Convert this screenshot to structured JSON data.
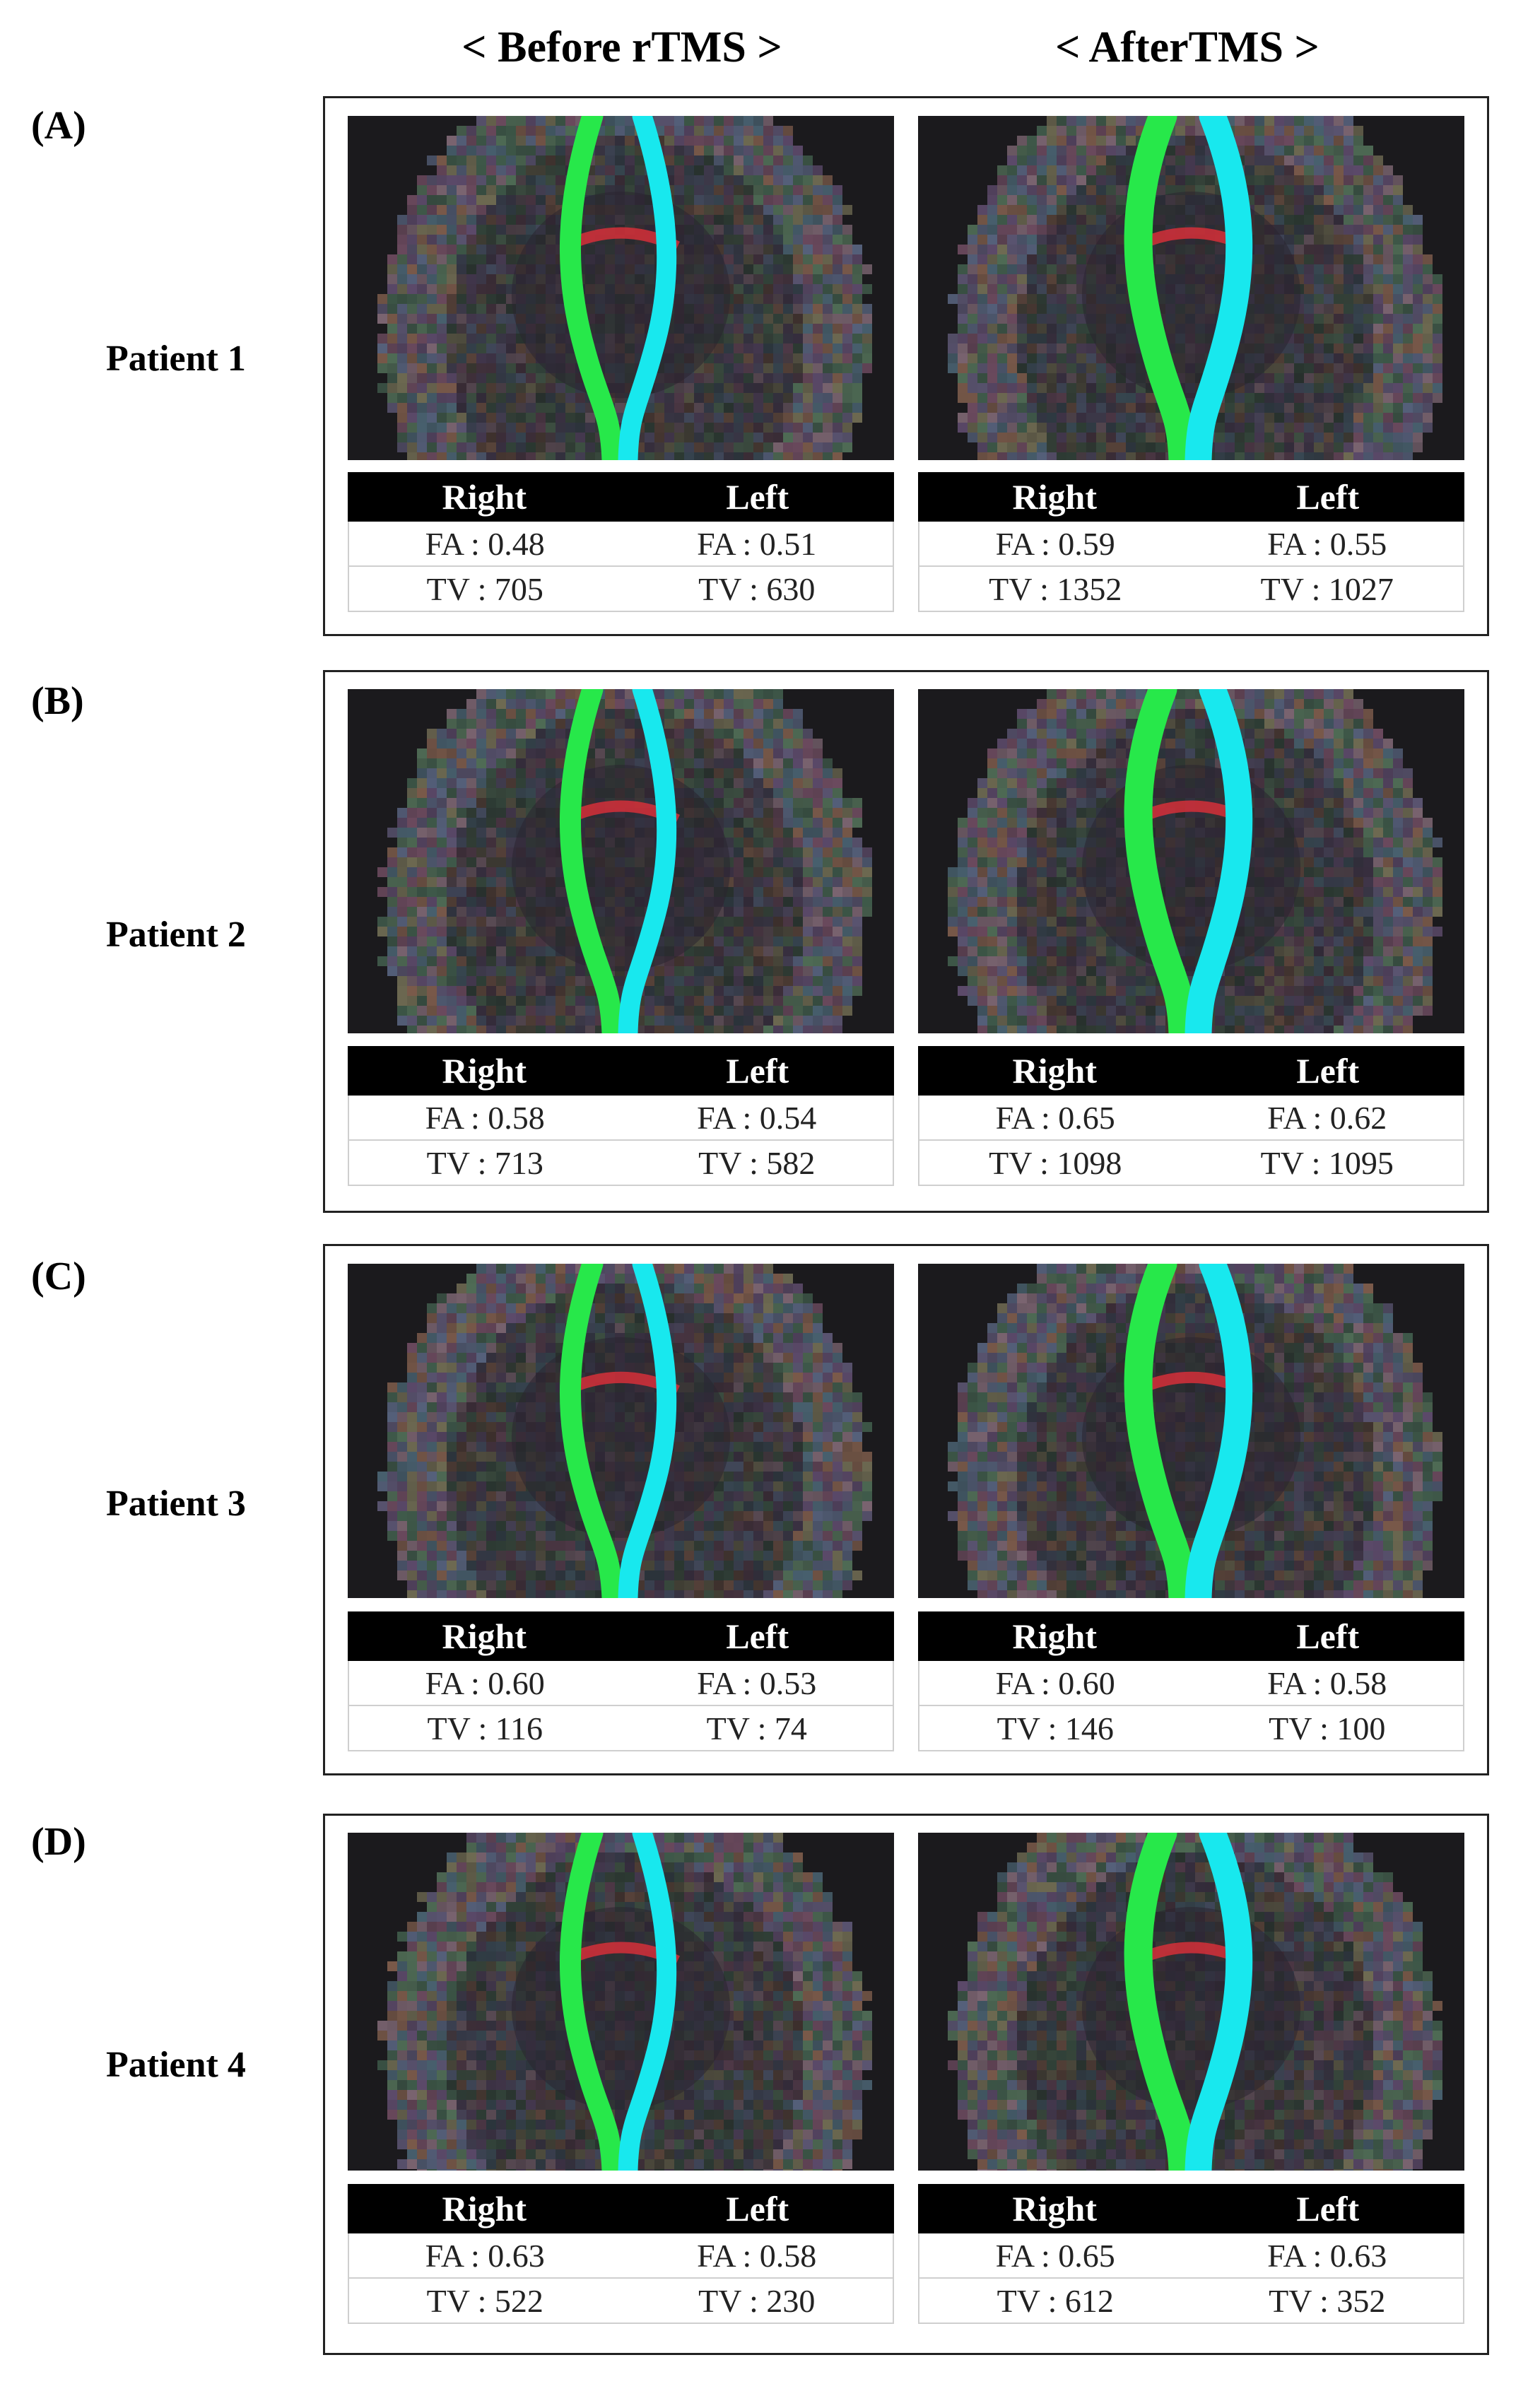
{
  "columns": {
    "before": "< Before rTMS >",
    "after": "< AfterTMS >"
  },
  "table_headers": {
    "right": "Right",
    "left": "Left"
  },
  "panels": [
    {
      "letter": "(A)",
      "patient": "Patient 1",
      "before": {
        "right_fa": "FA : 0.48",
        "left_fa": "FA : 0.51",
        "right_tv": "TV : 705",
        "left_tv": "TV : 630"
      },
      "after": {
        "right_fa": "FA : 0.59",
        "left_fa": "FA : 0.55",
        "right_tv": "TV : 1352",
        "left_tv": "TV : 1027"
      }
    },
    {
      "letter": "(B)",
      "patient": "Patient 2",
      "before": {
        "right_fa": "FA : 0.58",
        "left_fa": "FA : 0.54",
        "right_tv": "TV : 713",
        "left_tv": "TV : 582"
      },
      "after": {
        "right_fa": "FA : 0.65",
        "left_fa": "FA : 0.62",
        "right_tv": "TV : 1098",
        "left_tv": "TV : 1095"
      }
    },
    {
      "letter": "(C)",
      "patient": "Patient 3",
      "before": {
        "right_fa": "FA : 0.60",
        "left_fa": "FA : 0.53",
        "right_tv": "TV : 116",
        "left_tv": "TV : 74"
      },
      "after": {
        "right_fa": "FA : 0.60",
        "left_fa": "FA : 0.58",
        "right_tv": "TV : 146",
        "left_tv": "TV : 100"
      }
    },
    {
      "letter": "(D)",
      "patient": "Patient 4",
      "before": {
        "right_fa": "FA : 0.63",
        "left_fa": "FA : 0.58",
        "right_tv": "TV : 522",
        "left_tv": "TV : 230"
      },
      "after": {
        "right_fa": "FA : 0.65",
        "left_fa": "FA : 0.63",
        "right_tv": "TV : 612",
        "left_tv": "TV : 352"
      }
    }
  ],
  "colors": {
    "right_tract": "#27e84a",
    "left_tract": "#18e8ee",
    "callosum": "#e0303a"
  }
}
